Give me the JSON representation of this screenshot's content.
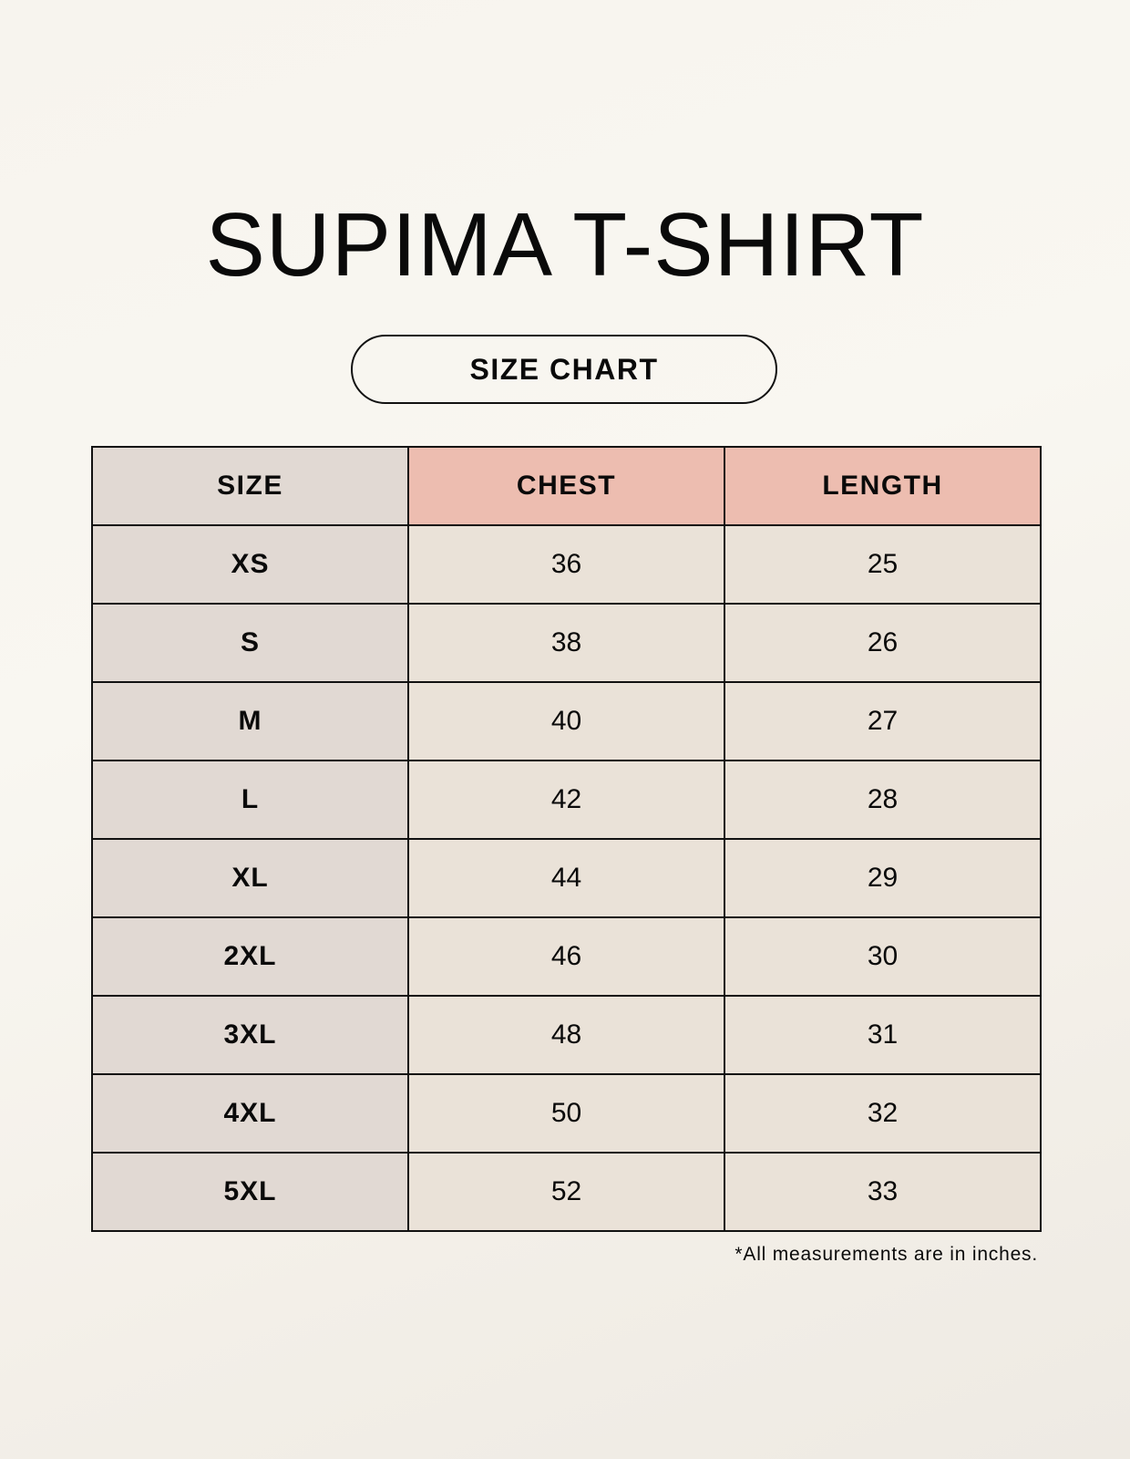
{
  "title": "SUPIMA T-SHIRT",
  "subtitle": "SIZE CHART",
  "colors": {
    "size_column": "#e1d9d3",
    "header_accent": "#edbdb0",
    "cell": "#eae2d8"
  },
  "table": {
    "headers": [
      "SIZE",
      "CHEST",
      "LENGTH"
    ],
    "rows": [
      [
        "XS",
        "36",
        "25"
      ],
      [
        "S",
        "38",
        "26"
      ],
      [
        "M",
        "40",
        "27"
      ],
      [
        "L",
        "42",
        "28"
      ],
      [
        "XL",
        "44",
        "29"
      ],
      [
        "2XL",
        "46",
        "30"
      ],
      [
        "3XL",
        "48",
        "31"
      ],
      [
        "4XL",
        "50",
        "32"
      ],
      [
        "5XL",
        "52",
        "33"
      ]
    ]
  },
  "footnote": "*All measurements are in inches."
}
